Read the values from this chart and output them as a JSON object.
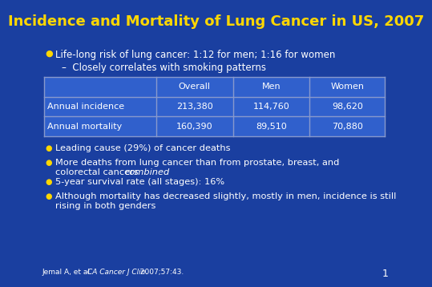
{
  "title": "Incidence and Mortality of Lung Cancer in US, 2007",
  "title_color": "#FFD700",
  "background_color": "#1A3FA0",
  "text_color": "#FFFFFF",
  "bullet_color": "#FFD700",
  "bullet1": "Life-long risk of lung cancer: 1:12 for men; 1:16 for women",
  "sub_bullet1": "Closely correlates with smoking patterns",
  "table_headers": [
    "",
    "Overall",
    "Men",
    "Women"
  ],
  "table_rows": [
    [
      "Annual incidence",
      "213,380",
      "114,760",
      "98,620"
    ],
    [
      "Annual mortality",
      "160,390",
      "89,510",
      "70,880"
    ]
  ],
  "table_bg": "#3060CC",
  "table_border_color": "#8899CC",
  "bullets_below": [
    "Leading cause (29%) of cancer deaths",
    "More deaths from lung cancer than from prostate, breast, and",
    "colorectal cancers ",
    "combined",
    "5-year survival rate (all stages): 16%",
    "Although mortality has decreased slightly, mostly in men, incidence is still",
    "rising in both genders"
  ],
  "footer_normal1": "Jemal A, et al. ",
  "footer_italic": "CA Cancer J Clin.",
  "footer_normal2": " 2007;57:43.",
  "page_number": "1"
}
